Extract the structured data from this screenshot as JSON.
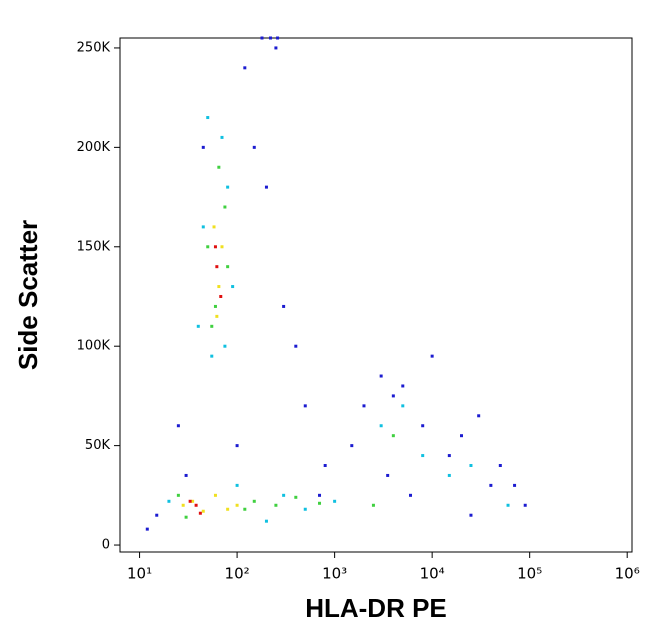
{
  "chart_data": {
    "type": "scatter",
    "x_label": "HLA-DR PE",
    "y_label": "Side Scatter",
    "xscale": "log",
    "xlim": [
      6.3,
      1120000
    ],
    "ylim": [
      -3500,
      255000
    ],
    "xticks": [
      {
        "value": 10,
        "label": "10¹"
      },
      {
        "value": 100,
        "label": "10²"
      },
      {
        "value": 1000,
        "label": "10³"
      },
      {
        "value": 10000,
        "label": "10⁴"
      },
      {
        "value": 100000,
        "label": "10⁵"
      },
      {
        "value": 1000000,
        "label": "10⁶"
      }
    ],
    "yticks": [
      0,
      {
        "value": 50000,
        "label": "50K"
      },
      {
        "value": 100000,
        "label": "100K"
      },
      {
        "value": 150000,
        "label": "150K"
      },
      {
        "value": 200000,
        "label": "200K"
      },
      {
        "value": 250000,
        "label": "250K"
      }
    ],
    "series": [
      {
        "color": "#1c1cd0",
        "x": [
          15,
          25,
          120,
          200,
          300,
          500,
          800,
          30,
          150,
          250,
          400,
          3000,
          5000,
          8000,
          20000,
          50000,
          90000,
          2000,
          15000,
          40000,
          1500,
          700,
          180,
          220,
          260,
          12,
          45,
          100,
          3500,
          6000,
          30000,
          70000,
          25000,
          4000,
          10000
        ],
        "y": [
          15000,
          60000,
          240000,
          180000,
          120000,
          70000,
          40000,
          35000,
          200000,
          250000,
          100000,
          85000,
          80000,
          60000,
          55000,
          40000,
          20000,
          70000,
          45000,
          30000,
          50000,
          25000,
          255000,
          255000,
          255000,
          8000,
          200000,
          50000,
          35000,
          25000,
          65000,
          30000,
          15000,
          75000,
          95000
        ]
      },
      {
        "color": "#10c0e0",
        "x": [
          40,
          55,
          80,
          90,
          45,
          70,
          300,
          500,
          1000,
          3000,
          5000,
          8000,
          15000,
          25000,
          60000,
          200,
          100,
          20,
          75,
          50
        ],
        "y": [
          110000,
          95000,
          180000,
          130000,
          160000,
          205000,
          25000,
          18000,
          22000,
          60000,
          70000,
          45000,
          35000,
          40000,
          20000,
          12000,
          30000,
          22000,
          100000,
          215000
        ]
      },
      {
        "color": "#40d040",
        "x": [
          50,
          60,
          75,
          65,
          55,
          80,
          150,
          250,
          400,
          700,
          25,
          30,
          120,
          4000,
          2500
        ],
        "y": [
          150000,
          120000,
          170000,
          190000,
          110000,
          140000,
          22000,
          20000,
          24000,
          21000,
          25000,
          14000,
          18000,
          55000,
          20000
        ]
      },
      {
        "color": "#f0e020",
        "x": [
          58,
          65,
          70,
          62,
          35,
          45,
          60,
          100,
          80,
          28
        ],
        "y": [
          160000,
          130000,
          150000,
          115000,
          22000,
          17000,
          25000,
          20000,
          18000,
          20000
        ]
      },
      {
        "color": "#e01010",
        "x": [
          62,
          68,
          60,
          38,
          42,
          33
        ],
        "y": [
          140000,
          125000,
          150000,
          20000,
          16000,
          22000
        ]
      }
    ]
  }
}
